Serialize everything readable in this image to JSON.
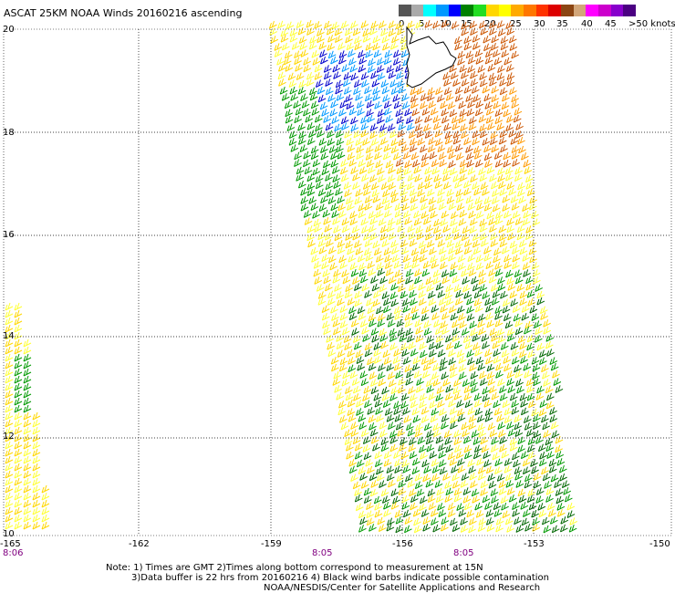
{
  "title": "ASCAT 25KM NOAA Winds 20160216 ascending",
  "colorbar": {
    "labels": [
      "0",
      "5",
      "10",
      "15",
      "20",
      "25",
      "30",
      "35",
      "40",
      "45"
    ],
    "units": ">50 knots",
    "colors": [
      "#555555",
      "#aaaaaa",
      "#00ffff",
      "#0099ff",
      "#0000ff",
      "#008000",
      "#22dd22",
      "#ffd700",
      "#ffff00",
      "#ffaa00",
      "#ff7700",
      "#ff3300",
      "#dd0000",
      "#8b4513",
      "#d2a679",
      "#ff00ff",
      "#cc00cc",
      "#8800cc",
      "#4b0082"
    ]
  },
  "axes": {
    "lat_labels": [
      "20",
      "18",
      "16",
      "14",
      "12",
      "10"
    ],
    "lon_labels": [
      "-165",
      "-162",
      "-159",
      "-156",
      "-153",
      "-150"
    ]
  },
  "times": [
    "8:06",
    "8:05",
    "8:05"
  ],
  "notes": [
    "Note: 1) Times are GMT 2)Times along bottom correspond to measurement at 15N",
    "3)Data buffer is 22 hrs from 20160216 4) Black wind barbs indicate possible contamination",
    "NOAA/NESDIS/Center for Satellite Applications and Research"
  ],
  "colors": {
    "grid": "#000000",
    "time_text": "#800080",
    "barb_yellow": "#ffd700",
    "barb_lightyellow": "#ffff33",
    "barb_orange": "#ff9900",
    "barb_darkorange": "#cc5500",
    "barb_green": "#009900",
    "barb_darkgreen": "#006600",
    "barb_blue": "#0000cc",
    "barb_lightblue": "#0099ff"
  }
}
